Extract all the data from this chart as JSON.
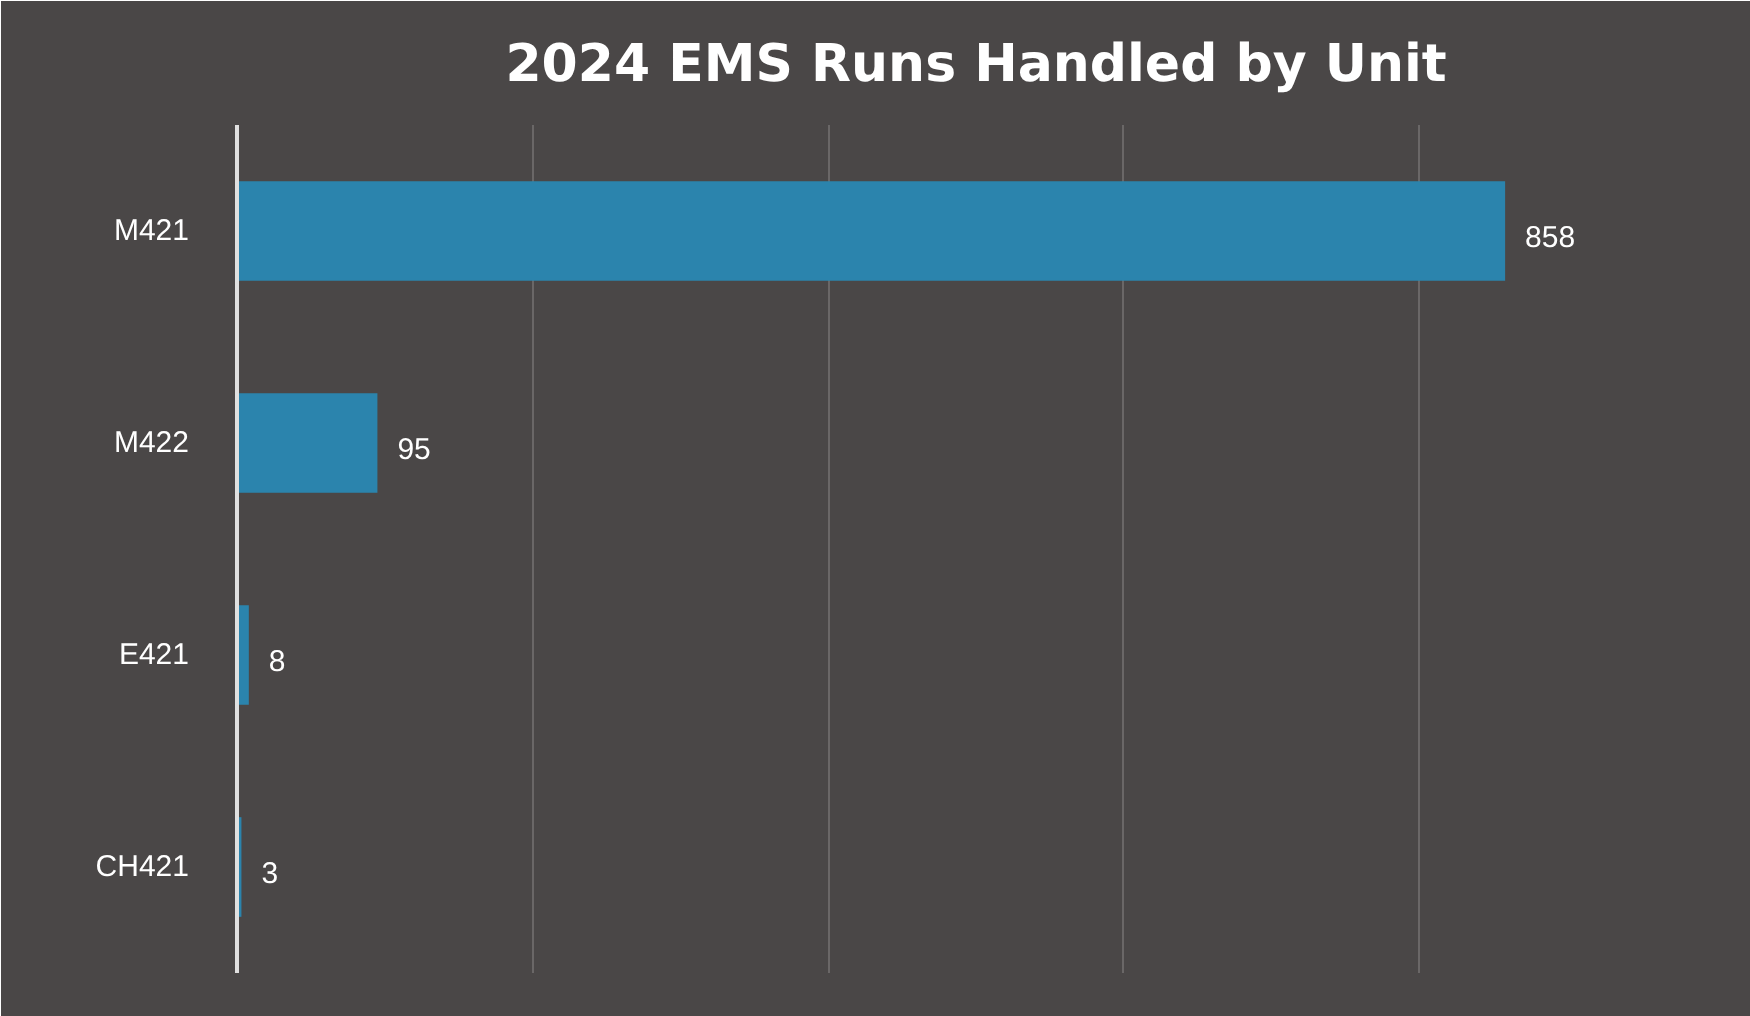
{
  "chart_data": {
    "type": "bar",
    "orientation": "horizontal",
    "title": "2024 EMS Runs Handled by Unit",
    "categories": [
      "M421",
      "M422",
      "E421",
      "CH421"
    ],
    "values": [
      858,
      95,
      8,
      3
    ],
    "color": "#2b84ad",
    "xlim": [
      0,
      1000
    ],
    "xticks": [
      {
        "value": 0,
        "label": null
      },
      {
        "value": 200,
        "label": null
      },
      {
        "value": 400,
        "label": null
      },
      {
        "value": 600,
        "label": null
      },
      {
        "value": 800,
        "label": null
      },
      {
        "value": 1000,
        "label": null
      }
    ],
    "tick_labels": "y",
    "grid": "x",
    "data_labels": true
  }
}
